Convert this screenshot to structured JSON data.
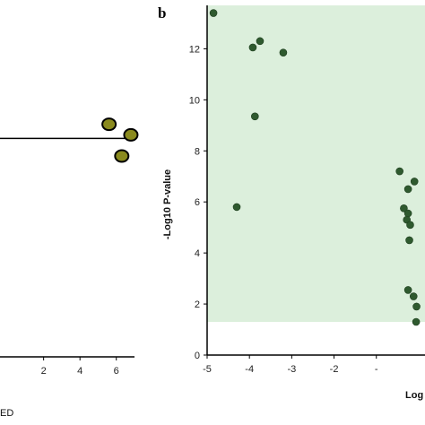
{
  "colors": {
    "background": "#ffffff",
    "significance_region": "#dcefdc",
    "left_marker_fill": "#8a8a1e",
    "left_marker_stroke": "#000000",
    "right_marker_fill": "#2f5a2f",
    "axis": "#000000"
  },
  "chart_data": [
    {
      "panel": "a",
      "type": "scatter",
      "visible_partially": true,
      "x_tick_labels": [
        "2",
        "4",
        "6"
      ],
      "x_ticks": [
        2,
        4,
        6
      ],
      "xlabel_fragment": "ED",
      "xlim": [
        -0.4,
        7
      ],
      "ylim": [
        0,
        10
      ],
      "reference_line_y": 6.2,
      "points": [
        {
          "x": 5.6,
          "y": 6.6
        },
        {
          "x": 6.8,
          "y": 6.3
        },
        {
          "x": 6.3,
          "y": 5.7
        }
      ]
    },
    {
      "panel": "b",
      "type": "scatter",
      "panel_label": "b",
      "ylabel": "-Log10 P-value",
      "xlabel_fragment": "Log",
      "xlim": [
        -5,
        0.15
      ],
      "ylim": [
        0,
        13.7
      ],
      "x_ticks": [
        -5,
        -4,
        -3,
        -2,
        -1
      ],
      "x_tick_labels": [
        "-5",
        "-4",
        "-3",
        "-2",
        "-"
      ],
      "y_ticks": [
        0,
        2,
        4,
        6,
        8,
        10,
        12
      ],
      "y_tick_labels": [
        "0",
        "2",
        "4",
        "6",
        "8",
        "10",
        "12"
      ],
      "significance_threshold_y": 1.3,
      "shaded_region": "above threshold",
      "points": [
        {
          "x": -4.85,
          "y": 13.4
        },
        {
          "x": -3.92,
          "y": 12.05
        },
        {
          "x": -3.75,
          "y": 12.3
        },
        {
          "x": -3.2,
          "y": 11.85
        },
        {
          "x": -3.87,
          "y": 9.35
        },
        {
          "x": -4.3,
          "y": 5.8
        },
        {
          "x": -0.45,
          "y": 7.2
        },
        {
          "x": -0.1,
          "y": 6.8
        },
        {
          "x": -0.25,
          "y": 6.5
        },
        {
          "x": -0.35,
          "y": 5.75
        },
        {
          "x": -0.25,
          "y": 5.55
        },
        {
          "x": -0.28,
          "y": 5.3
        },
        {
          "x": -0.2,
          "y": 5.1
        },
        {
          "x": -0.22,
          "y": 4.5
        },
        {
          "x": -0.25,
          "y": 2.55
        },
        {
          "x": -0.12,
          "y": 2.3
        },
        {
          "x": -0.05,
          "y": 1.9
        },
        {
          "x": -0.06,
          "y": 1.3
        }
      ]
    }
  ]
}
